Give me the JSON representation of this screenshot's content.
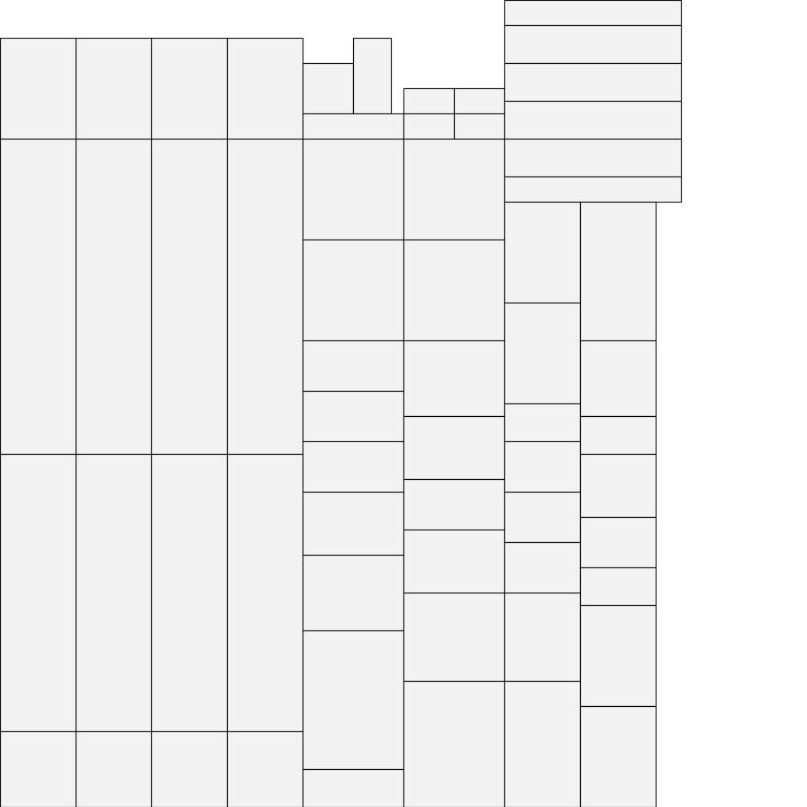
{
  "diagram": {
    "type": "rectangle-packing",
    "colors": {
      "background": "#ffffff",
      "tile_fill": "#f2f2f2",
      "tile_stroke": "#000000"
    }
  }
}
